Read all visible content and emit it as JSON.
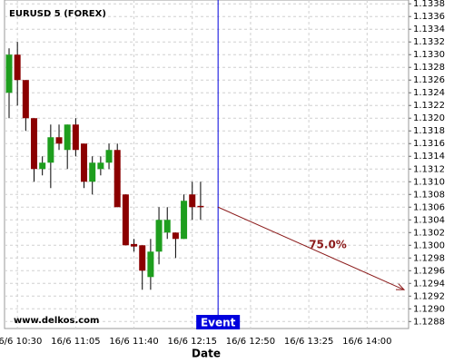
{
  "chart_data": {
    "type": "candlestick",
    "title": "EURUSD 5 (FOREX)",
    "xlabel": "Date",
    "watermark": "www.delkos.com",
    "categories": [
      null,
      "16/6 10:30",
      null,
      null,
      null,
      null,
      null,
      null,
      "16/6 11:05",
      null,
      null,
      null,
      null,
      null,
      null,
      "16/6 11:40",
      null,
      null,
      null,
      null,
      null,
      null,
      "16/6 12:15",
      null,
      null,
      null,
      null,
      null,
      null,
      "16/6 12:50",
      null,
      null,
      null,
      null,
      null,
      null,
      "16/6 13:25",
      null,
      null,
      null,
      null,
      null,
      null,
      "16/6 14:00",
      null,
      null,
      null,
      null
    ],
    "open": [
      1.1324,
      1.133,
      1.1326,
      1.132,
      1.1312,
      1.1313,
      1.1317,
      1.1315,
      1.1319,
      1.1316,
      1.131,
      1.1312,
      1.1313,
      1.1315,
      1.1308,
      1.13002,
      1.13,
      1.1295,
      1.1299,
      1.1302,
      1.1302,
      1.1301,
      1.1308,
      1.13062,
      null,
      null,
      null,
      null,
      null,
      null,
      null,
      null,
      null,
      null,
      null,
      null,
      null,
      null,
      null,
      null,
      null,
      null,
      null,
      null,
      null,
      null,
      null,
      null
    ],
    "high": [
      1.1331,
      1.1332,
      1.1326,
      1.132,
      1.1314,
      1.1319,
      1.1319,
      1.1319,
      1.132,
      1.1316,
      1.1314,
      1.1314,
      1.1316,
      1.1316,
      1.1308,
      1.1301,
      1.13,
      1.1301,
      1.1306,
      1.1306,
      1.1302,
      1.1308,
      1.131,
      1.131,
      null,
      null,
      null,
      null,
      null,
      null,
      null,
      null,
      null,
      null,
      null,
      null,
      null,
      null,
      null,
      null,
      null,
      null,
      null,
      null,
      null,
      null,
      null,
      null
    ],
    "low": [
      1.132,
      1.1322,
      1.1318,
      1.131,
      1.1311,
      1.1309,
      1.1315,
      1.1312,
      1.1314,
      1.1309,
      1.1308,
      1.1311,
      1.1312,
      1.1306,
      1.13,
      1.1299,
      1.1293,
      1.1293,
      1.1297,
      1.1301,
      1.1298,
      1.1301,
      1.1304,
      1.1304,
      null,
      null,
      null,
      null,
      null,
      null,
      null,
      null,
      null,
      null,
      null,
      null,
      null,
      null,
      null,
      null,
      null,
      null,
      null,
      null,
      null,
      null,
      null,
      null
    ],
    "close": [
      1.133,
      1.1326,
      1.132,
      1.1312,
      1.1313,
      1.1317,
      1.1316,
      1.1319,
      1.1315,
      1.131,
      1.1313,
      1.1313,
      1.1315,
      1.1306,
      1.13,
      1.12998,
      1.1296,
      1.1299,
      1.1304,
      1.1304,
      1.1301,
      1.1307,
      1.1306,
      1.1306,
      null,
      null,
      null,
      null,
      null,
      null,
      null,
      null,
      null,
      null,
      null,
      null,
      null,
      null,
      null,
      null,
      null,
      null,
      null,
      null,
      null,
      null,
      null,
      null
    ],
    "up_color": "#1e9e1e",
    "down_color": "#8b0000",
    "event": {
      "label": "Event",
      "color": "#0000dd"
    },
    "forecast": {
      "start": 1.1306,
      "end": 1.1293,
      "label": "75.0%",
      "color": "#8b1a1a"
    },
    "ylim": [
      1.12869,
      1.13386
    ],
    "yticks": [
      1.1288,
      {
        "value": 1.129,
        "label": "1.1290"
      },
      1.1292,
      1.1294,
      1.1296,
      1.1298,
      {
        "value": 1.13,
        "label": "1.1300"
      },
      1.1302,
      1.1304,
      1.1306,
      1.1308,
      {
        "value": 1.131,
        "label": "1.1310"
      },
      1.1312,
      1.1314,
      1.1316,
      1.1318,
      {
        "value": 1.132,
        "label": "1.1320"
      },
      1.1322,
      1.1324,
      1.1326,
      1.1328,
      {
        "value": 1.133,
        "label": "1.1330"
      },
      1.1332,
      1.1334,
      1.1336,
      1.1338
    ],
    "grid": true
  }
}
